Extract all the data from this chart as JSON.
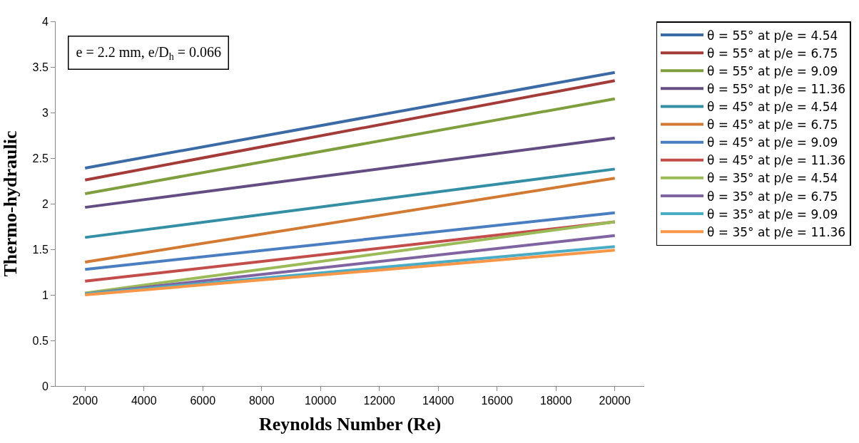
{
  "chart_data": {
    "type": "line",
    "xlabel": "Reynolds Number (Re)",
    "ylabel": "Thermo-hydraulic",
    "annotations": [
      "e = 2.2 mm, e/D$_{h}$ = 0.066"
    ],
    "xlim": [
      1000,
      21000
    ],
    "xticks": [
      2000,
      4000,
      6000,
      8000,
      10000,
      12000,
      14000,
      16000,
      18000,
      20000
    ],
    "ylim": [
      0,
      4
    ],
    "yticks": [
      0,
      0.5,
      1,
      1.5,
      2,
      2.5,
      3,
      3.5,
      4
    ],
    "legend": "right",
    "marker": "none",
    "line_style": "solid",
    "x": [
      2000,
      20000
    ],
    "series": [
      {
        "name": "θ = 55° at p/e = 4.54",
        "color": "#3c6aa5",
        "values": [
          2.39,
          3.44
        ]
      },
      {
        "name": "θ = 55° at p/e = 6.75",
        "color": "#a33b38",
        "values": [
          2.26,
          3.35
        ]
      },
      {
        "name": "θ = 55° at p/e = 9.09",
        "color": "#7f9e3d",
        "values": [
          2.11,
          3.15
        ]
      },
      {
        "name": "θ = 55° at p/e = 11.36",
        "color": "#634d82",
        "values": [
          1.96,
          2.72
        ]
      },
      {
        "name": "θ = 45° at p/e = 4.54",
        "color": "#358fa4",
        "values": [
          1.63,
          2.38
        ]
      },
      {
        "name": "θ = 45° at p/e = 6.75",
        "color": "#d27a33",
        "values": [
          1.36,
          2.28
        ]
      },
      {
        "name": "θ = 45° at p/e = 9.09",
        "color": "#4a7ec0",
        "values": [
          1.28,
          1.9
        ]
      },
      {
        "name": "θ = 45° at p/e = 11.36",
        "color": "#c34d4a",
        "values": [
          1.15,
          1.8
        ]
      },
      {
        "name": "θ = 35° at p/e = 4.54",
        "color": "#9bbb59",
        "values": [
          1.02,
          1.8
        ]
      },
      {
        "name": "θ = 35° at p/e = 6.75",
        "color": "#8064a2",
        "values": [
          1.01,
          1.65
        ]
      },
      {
        "name": "θ = 35° at p/e = 9.09",
        "color": "#4bacc6",
        "values": [
          1.01,
          1.53
        ]
      },
      {
        "name": "θ = 35° at p/e = 11.36",
        "color": "#f79646",
        "values": [
          1.0,
          1.49
        ]
      }
    ]
  }
}
